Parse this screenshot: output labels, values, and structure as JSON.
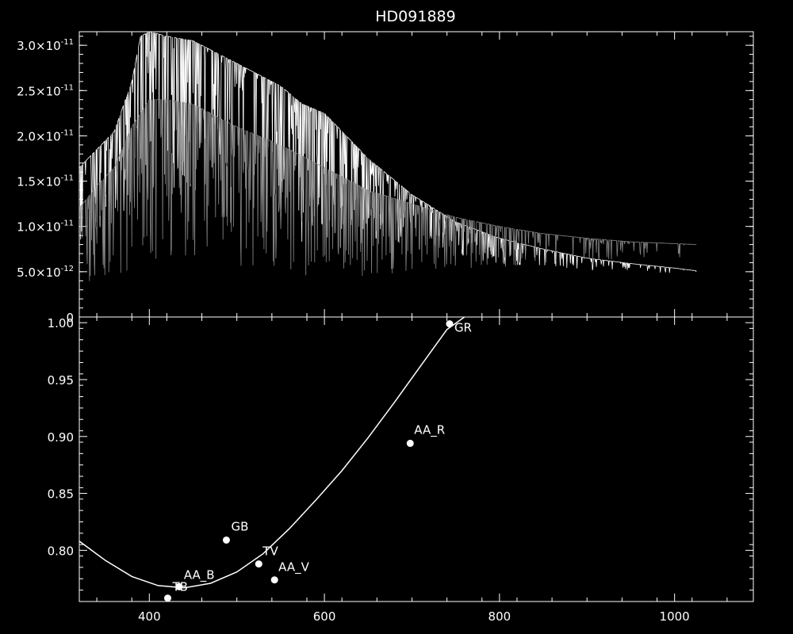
{
  "chart_data": [
    {
      "type": "line",
      "title": "HD091889",
      "xlabel": "",
      "ylabel": "",
      "xlim": [
        320,
        1090
      ],
      "ylim": [
        0,
        3.15e-11
      ],
      "x_ticks": [
        400,
        600,
        800,
        1000
      ],
      "y_ticks": [
        {
          "value": 0,
          "label": "0"
        },
        {
          "value": 5e-12,
          "label": "5.0×10",
          "exp": "-12"
        },
        {
          "value": 1e-11,
          "label": "1.0×10",
          "exp": "-11"
        },
        {
          "value": 1.5e-11,
          "label": "1.5×10",
          "exp": "-11"
        },
        {
          "value": 2e-11,
          "label": "2.0×10",
          "exp": "-11"
        },
        {
          "value": 2.5e-11,
          "label": "2.5×10",
          "exp": "-11"
        },
        {
          "value": 3e-11,
          "label": "3.0×10",
          "exp": "-11"
        }
      ],
      "series": [
        {
          "color": "#ffffff",
          "x": [
            320,
            340,
            360,
            380,
            390,
            400,
            420,
            450,
            480,
            500,
            550,
            575,
            600,
            650,
            700,
            750,
            800,
            850,
            900,
            950,
            1000,
            1025
          ],
          "y": [
            1.65e-11,
            1.85e-11,
            2.05e-11,
            2.6e-11,
            3.1e-11,
            3.15e-11,
            3.1e-11,
            3.05e-11,
            2.9e-11,
            2.8e-11,
            2.55e-11,
            2.35e-11,
            2.25e-11,
            1.75e-11,
            1.35e-11,
            1.05e-11,
            8.7e-12,
            7.5e-12,
            6.5e-12,
            5.9e-12,
            5.4e-12,
            5.1e-12
          ]
        },
        {
          "color": "#888888",
          "x": [
            320,
            340,
            360,
            380,
            400,
            420,
            450,
            480,
            500,
            550,
            600,
            650,
            700,
            750,
            800,
            850,
            900,
            950,
            1000,
            1025
          ],
          "y": [
            1.2e-11,
            1.45e-11,
            1.65e-11,
            2.1e-11,
            2.4e-11,
            2.4e-11,
            2.35e-11,
            2.2e-11,
            2.1e-11,
            1.9e-11,
            1.65e-11,
            1.4e-11,
            1.25e-11,
            1.1e-11,
            1e-11,
            9.2e-12,
            8.7e-12,
            8.3e-12,
            8.1e-12,
            8e-12
          ]
        }
      ]
    },
    {
      "type": "scatter",
      "xlabel": "",
      "ylabel": "",
      "xlim": [
        320,
        1090
      ],
      "ylim": [
        0.755,
        1.005
      ],
      "x_ticks": [
        400,
        600,
        800,
        1000
      ],
      "y_ticks": [
        {
          "value": 0.8,
          "label": "0.80"
        },
        {
          "value": 0.85,
          "label": "0.85"
        },
        {
          "value": 0.9,
          "label": "0.90"
        },
        {
          "value": 0.95,
          "label": "0.95"
        },
        {
          "value": 1.0,
          "label": "1.00"
        }
      ],
      "points": [
        {
          "label": "TB",
          "x": 421,
          "y": 0.758
        },
        {
          "label": "AA_B",
          "x": 434,
          "y": 0.768
        },
        {
          "label": "GB",
          "x": 488,
          "y": 0.809
        },
        {
          "label": "TV",
          "x": 525,
          "y": 0.788
        },
        {
          "label": "AA_V",
          "x": 543,
          "y": 0.774
        },
        {
          "label": "AA_R",
          "x": 698,
          "y": 0.894
        },
        {
          "label": "GR",
          "x": 743,
          "y": 0.999
        }
      ],
      "fit_curve": {
        "x": [
          320,
          350,
          380,
          410,
          440,
          470,
          500,
          530,
          560,
          590,
          620,
          650,
          680,
          710,
          740,
          760
        ],
        "y": [
          0.808,
          0.791,
          0.777,
          0.769,
          0.767,
          0.771,
          0.781,
          0.797,
          0.819,
          0.844,
          0.87,
          0.899,
          0.93,
          0.962,
          0.994,
          1.005
        ]
      }
    }
  ]
}
